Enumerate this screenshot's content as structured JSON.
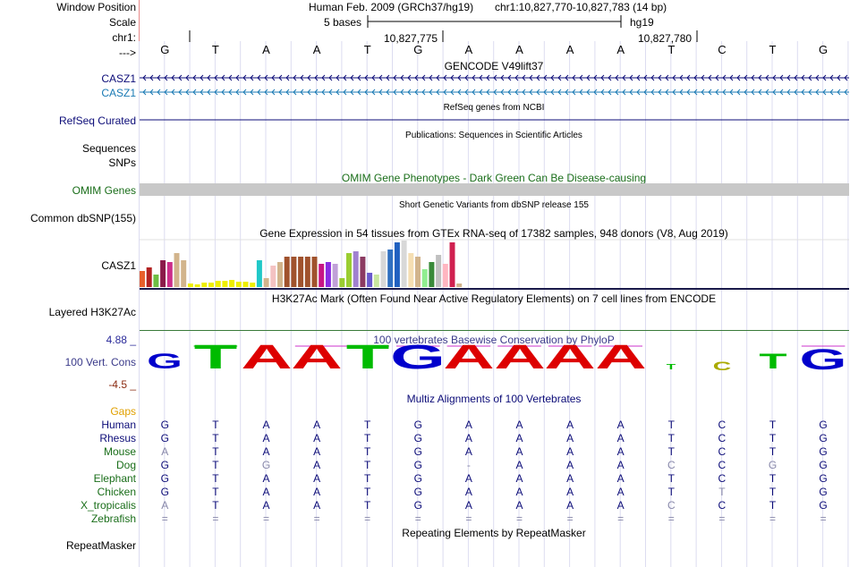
{
  "header": {
    "window_position_label": "Window Position",
    "scale_label": "Scale",
    "chrom_label": "chr1:",
    "strand_label": "--->",
    "assembly_text": "Human Feb. 2009 (GRCh37/hg19)",
    "position_text": "chr1:10,827,770-10,827,783 (14 bp)",
    "scale_text": "5 bases",
    "scale_db": "hg19",
    "ruler_tick_1": "10,827,775",
    "ruler_tick_2": "10,827,780"
  },
  "sequence": [
    "G",
    "T",
    "A",
    "A",
    "T",
    "G",
    "A",
    "A",
    "A",
    "A",
    "T",
    "C",
    "T",
    "G"
  ],
  "tracks": {
    "gencode_title": "GENCODE V49lift37",
    "gencode_gene_1": "CASZ1",
    "gencode_gene_2": "CASZ1",
    "refseq_label": "RefSeq Curated",
    "refseq_title": "RefSeq genes from NCBI",
    "publications_title": "Publications: Sequences in Scientific Articles",
    "sequences_label": "Sequences",
    "snps_label": "SNPs",
    "omim_title": "OMIM Gene Phenotypes - Dark Green Can Be Disease-causing",
    "omim_label": "OMIM Genes",
    "dbsnp_title": "Short Genetic Variants from dbSNP release 155",
    "dbsnp_label": "Common dbSNP(155)",
    "gtex_title": "Gene Expression in 54 tissues from GTEx RNA-seq of 17382 samples, 948 donors (V8, Aug 2019)",
    "gtex_label": "CASZ1",
    "h3k27ac_title": "H3K27Ac Mark (Often Found Near Active Regulatory Elements) on 7 cell lines from ENCODE",
    "h3k27ac_label": "Layered H3K27Ac",
    "cons_title": "100 vertebrates Basewise Conservation by PhyloP",
    "cons_label": "100 Vert. Cons",
    "cons_max": "4.88 _",
    "cons_min": "-4.5 _",
    "multiz_title": "Multiz Alignments of 100 Vertebrates",
    "gaps_label": "Gaps",
    "repeat_title": "Repeating Elements by RepeatMasker",
    "repeat_label": "RepeatMasker"
  },
  "gtex_values": [
    18,
    22,
    14,
    30,
    28,
    38,
    30,
    4,
    3,
    5,
    5,
    7,
    7,
    8,
    6,
    6,
    5,
    30,
    10,
    24,
    28,
    34,
    34,
    34,
    34,
    34,
    26,
    28,
    26,
    10,
    38,
    40,
    34,
    16,
    14,
    40,
    42,
    50,
    52,
    38,
    34,
    20,
    28,
    36,
    26,
    50,
    4
  ],
  "gtex_colors": [
    "#e8602c",
    "#b22222",
    "#6ebe44",
    "#8b1a4a",
    "#cc2e8a",
    "#d2b48c",
    "#d2b48c",
    "#eeee00",
    "#eeee00",
    "#eeee00",
    "#eeee00",
    "#eeee00",
    "#eeee00",
    "#eeee00",
    "#eeee00",
    "#eeee00",
    "#eeee00",
    "#20c8c8",
    "#d2b48c",
    "#f4c2c2",
    "#d2b48c",
    "#a0522d",
    "#a0522d",
    "#a0522d",
    "#a0522d",
    "#a0522d",
    "#c71585",
    "#8a2be2",
    "#c0a0d8",
    "#9acd32",
    "#9acd32",
    "#a080d0",
    "#8b3a62",
    "#6a5acd",
    "#c8e6a0",
    "#d8d8d8",
    "#3070c0",
    "#2060c0",
    "#d8d8d8",
    "#f5deb3",
    "#d2b48c",
    "#90ee90",
    "#3a8a3a",
    "#c0c0c0",
    "#ffb6c1",
    "#d02050",
    "#d2b48c"
  ],
  "conservation": [
    {
      "base": "G",
      "color": "#0000cc",
      "height": 18
    },
    {
      "base": "T",
      "color": "#00bb00",
      "height": 28
    },
    {
      "base": "A",
      "color": "#dd0000",
      "height": 28
    },
    {
      "base": "A",
      "color": "#dd0000",
      "height": 28
    },
    {
      "base": "T",
      "color": "#00bb00",
      "height": 28
    },
    {
      "base": "G",
      "color": "#0000cc",
      "height": 28
    },
    {
      "base": "A",
      "color": "#dd0000",
      "height": 28
    },
    {
      "base": "A",
      "color": "#dd0000",
      "height": 28
    },
    {
      "base": "A",
      "color": "#dd0000",
      "height": 28
    },
    {
      "base": "A",
      "color": "#dd0000",
      "height": 28
    },
    {
      "base": "T",
      "color": "#00bb00",
      "height": 6
    },
    {
      "base": "C",
      "color": "#aaaa00",
      "height": 10
    },
    {
      "base": "T",
      "color": "#00bb00",
      "height": 18
    },
    {
      "base": "G",
      "color": "#0000cc",
      "height": 24
    }
  ],
  "alignments": [
    {
      "species": "Human",
      "seq": [
        "G",
        "T",
        "A",
        "A",
        "T",
        "G",
        "A",
        "A",
        "A",
        "A",
        "T",
        "C",
        "T",
        "G"
      ]
    },
    {
      "species": "Rhesus",
      "seq": [
        "G",
        "T",
        "A",
        "A",
        "T",
        "G",
        "A",
        "A",
        "A",
        "A",
        "T",
        "C",
        "T",
        "G"
      ]
    },
    {
      "species": "Mouse",
      "seq": [
        "A",
        "T",
        "A",
        "A",
        "T",
        "G",
        "A",
        "A",
        "A",
        "A",
        "T",
        "C",
        "T",
        "G"
      ]
    },
    {
      "species": "Dog",
      "seq": [
        "G",
        "T",
        "G",
        "A",
        "T",
        "G",
        "-",
        "A",
        "A",
        "A",
        "C",
        "C",
        "G",
        "G"
      ]
    },
    {
      "species": "Elephant",
      "seq": [
        "G",
        "T",
        "A",
        "A",
        "T",
        "G",
        "A",
        "A",
        "A",
        "A",
        "T",
        "C",
        "T",
        "G"
      ]
    },
    {
      "species": "Chicken",
      "seq": [
        "G",
        "T",
        "A",
        "A",
        "T",
        "G",
        "A",
        "A",
        "A",
        "A",
        "T",
        "T",
        "T",
        "G"
      ]
    },
    {
      "species": "X_tropicalis",
      "seq": [
        "A",
        "T",
        "A",
        "A",
        "T",
        "G",
        "A",
        "A",
        "A",
        "A",
        "C",
        "C",
        "T",
        "G"
      ]
    },
    {
      "species": "Zebrafish",
      "seq": [
        "=",
        "=",
        "=",
        "=",
        "=",
        "=",
        "=",
        "=",
        "=",
        "=",
        "=",
        "=",
        "=",
        "="
      ]
    }
  ],
  "alignment_mismatch": [
    [
      0,
      0,
      0,
      0,
      0,
      0,
      0,
      0,
      0,
      0,
      0,
      0,
      0,
      0
    ],
    [
      0,
      0,
      0,
      0,
      0,
      0,
      0,
      0,
      0,
      0,
      0,
      0,
      0,
      0
    ],
    [
      1,
      0,
      0,
      0,
      0,
      0,
      0,
      0,
      0,
      0,
      0,
      0,
      0,
      0
    ],
    [
      0,
      0,
      1,
      0,
      0,
      0,
      1,
      0,
      0,
      0,
      1,
      0,
      1,
      0
    ],
    [
      0,
      0,
      0,
      0,
      0,
      0,
      0,
      0,
      0,
      0,
      0,
      0,
      0,
      0
    ],
    [
      0,
      0,
      0,
      0,
      0,
      0,
      0,
      0,
      0,
      0,
      0,
      1,
      0,
      0
    ],
    [
      1,
      0,
      0,
      0,
      0,
      0,
      0,
      0,
      0,
      0,
      1,
      0,
      0,
      0
    ],
    [
      0,
      0,
      0,
      0,
      0,
      0,
      0,
      0,
      0,
      0,
      0,
      0,
      0,
      0
    ]
  ],
  "colors": {
    "gencode_dark": "#0c0c78",
    "gencode_light": "#1a7ab4",
    "refseq": "#0c0c78",
    "omim_green": "#1a6e1a",
    "omim_bar": "#c8c8c8",
    "cons_blue": "#3a3a8a",
    "cons_max": "#2a2a9a",
    "cons_min": "#8a2a10",
    "gaps": "#e0a000",
    "species_blue": "#0c0c78",
    "species_green": "#1a6e1a",
    "mismatch": "#8888aa",
    "h3k27ac_line": "#3a7a3a"
  }
}
